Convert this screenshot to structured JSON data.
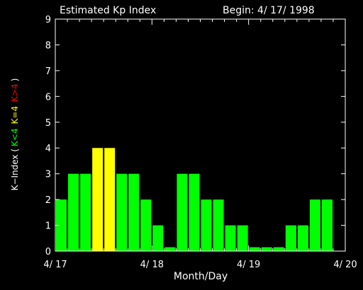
{
  "chart_data": {
    "type": "bar",
    "title": "Estimated Kp Index",
    "begin_label": "Begin:  4/ 17/ 1998",
    "xlabel": "Month/Day",
    "ylabel": {
      "prefix": "K−Index  (",
      "lt4": "K<4",
      "eq4": "K=4",
      "gt4": "K>4",
      "suffix": ")"
    },
    "x_tick_labels": [
      "4/ 17",
      "4/ 18",
      "4/ 19",
      "4/ 20"
    ],
    "y_tick_labels": [
      "0",
      "1",
      "2",
      "3",
      "4",
      "5",
      "6",
      "7",
      "8",
      "9"
    ],
    "ylim": [
      0,
      9
    ],
    "bars_per_day": 8,
    "values": [
      2,
      3,
      3,
      4,
      4,
      3,
      3,
      2,
      1,
      0.15,
      3,
      3,
      2,
      2,
      1,
      1,
      0.15,
      0.15,
      0.15,
      1,
      1,
      2,
      2
    ],
    "colors": {
      "lt4": "#00ff00",
      "eq4": "#ffff00",
      "gt4": "#ff0000",
      "axes": "#ffffff",
      "background": "#000000"
    }
  }
}
